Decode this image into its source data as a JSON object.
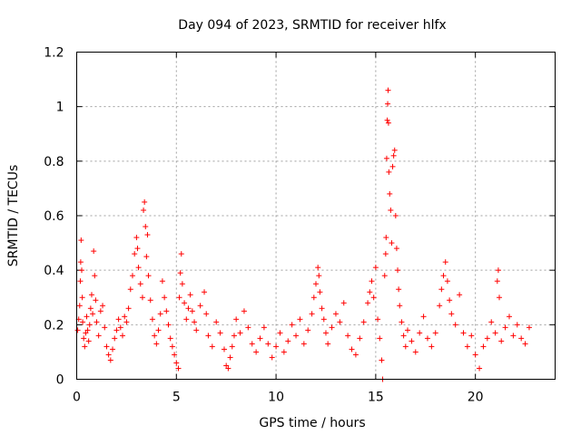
{
  "chart_data": {
    "type": "scatter",
    "title": "Day 094 of 2023, SRMTID for receiver hlfx",
    "xlabel": "GPS time / hours",
    "ylabel": "SRMTID / TECUs",
    "xlim": [
      0,
      24
    ],
    "ylim": [
      0,
      1.2
    ],
    "xticks": [
      0,
      5,
      10,
      15,
      20
    ],
    "yticks": [
      0,
      0.2,
      0.4,
      0.6,
      0.8,
      1,
      1.2
    ],
    "xtick_labels": [
      "0",
      "5",
      "10",
      "15",
      "20"
    ],
    "ytick_labels": [
      "0",
      "0.2",
      "0.4",
      "0.6",
      "0.8",
      "1",
      "1.2"
    ],
    "grid": true,
    "marker": "+",
    "color": "#ff0000",
    "series": [
      {
        "name": "SRMTID",
        "points": [
          [
            0.05,
            0.18
          ],
          [
            0.1,
            0.22
          ],
          [
            0.15,
            0.27
          ],
          [
            0.18,
            0.36
          ],
          [
            0.2,
            0.43
          ],
          [
            0.22,
            0.51
          ],
          [
            0.25,
            0.4
          ],
          [
            0.28,
            0.3
          ],
          [
            0.3,
            0.21
          ],
          [
            0.35,
            0.15
          ],
          [
            0.4,
            0.12
          ],
          [
            0.45,
            0.17
          ],
          [
            0.5,
            0.23
          ],
          [
            0.55,
            0.18
          ],
          [
            0.6,
            0.14
          ],
          [
            0.65,
            0.2
          ],
          [
            0.7,
            0.26
          ],
          [
            0.75,
            0.31
          ],
          [
            0.8,
            0.24
          ],
          [
            0.85,
            0.47
          ],
          [
            0.9,
            0.38
          ],
          [
            0.95,
            0.29
          ],
          [
            1.0,
            0.21
          ],
          [
            1.1,
            0.16
          ],
          [
            1.2,
            0.25
          ],
          [
            1.3,
            0.27
          ],
          [
            1.4,
            0.19
          ],
          [
            1.5,
            0.12
          ],
          [
            1.6,
            0.09
          ],
          [
            1.7,
            0.07
          ],
          [
            1.8,
            0.11
          ],
          [
            1.9,
            0.15
          ],
          [
            2.0,
            0.18
          ],
          [
            2.1,
            0.22
          ],
          [
            2.2,
            0.19
          ],
          [
            2.3,
            0.16
          ],
          [
            2.4,
            0.23
          ],
          [
            2.5,
            0.21
          ],
          [
            2.6,
            0.26
          ],
          [
            2.7,
            0.33
          ],
          [
            2.8,
            0.38
          ],
          [
            2.9,
            0.46
          ],
          [
            3.0,
            0.52
          ],
          [
            3.05,
            0.48
          ],
          [
            3.1,
            0.41
          ],
          [
            3.2,
            0.35
          ],
          [
            3.3,
            0.3
          ],
          [
            3.35,
            0.62
          ],
          [
            3.4,
            0.65
          ],
          [
            3.45,
            0.56
          ],
          [
            3.5,
            0.45
          ],
          [
            3.55,
            0.53
          ],
          [
            3.6,
            0.38
          ],
          [
            3.7,
            0.29
          ],
          [
            3.8,
            0.22
          ],
          [
            3.9,
            0.16
          ],
          [
            4.0,
            0.13
          ],
          [
            4.1,
            0.18
          ],
          [
            4.2,
            0.24
          ],
          [
            4.3,
            0.36
          ],
          [
            4.4,
            0.3
          ],
          [
            4.5,
            0.25
          ],
          [
            4.6,
            0.2
          ],
          [
            4.7,
            0.15
          ],
          [
            4.8,
            0.12
          ],
          [
            4.9,
            0.09
          ],
          [
            5.0,
            0.06
          ],
          [
            5.1,
            0.04
          ],
          [
            5.15,
            0.3
          ],
          [
            5.2,
            0.39
          ],
          [
            5.25,
            0.46
          ],
          [
            5.3,
            0.35
          ],
          [
            5.4,
            0.28
          ],
          [
            5.5,
            0.22
          ],
          [
            5.6,
            0.26
          ],
          [
            5.7,
            0.31
          ],
          [
            5.8,
            0.25
          ],
          [
            5.9,
            0.21
          ],
          [
            6.0,
            0.18
          ],
          [
            6.2,
            0.27
          ],
          [
            6.4,
            0.32
          ],
          [
            6.5,
            0.24
          ],
          [
            6.6,
            0.16
          ],
          [
            6.8,
            0.12
          ],
          [
            7.0,
            0.21
          ],
          [
            7.2,
            0.17
          ],
          [
            7.4,
            0.11
          ],
          [
            7.5,
            0.05
          ],
          [
            7.6,
            0.04
          ],
          [
            7.7,
            0.08
          ],
          [
            7.8,
            0.12
          ],
          [
            7.9,
            0.16
          ],
          [
            8.0,
            0.22
          ],
          [
            8.2,
            0.17
          ],
          [
            8.4,
            0.25
          ],
          [
            8.6,
            0.19
          ],
          [
            8.8,
            0.13
          ],
          [
            9.0,
            0.1
          ],
          [
            9.2,
            0.15
          ],
          [
            9.4,
            0.19
          ],
          [
            9.6,
            0.13
          ],
          [
            9.8,
            0.08
          ],
          [
            10.0,
            0.12
          ],
          [
            10.2,
            0.17
          ],
          [
            10.4,
            0.1
          ],
          [
            10.6,
            0.14
          ],
          [
            10.8,
            0.2
          ],
          [
            11.0,
            0.16
          ],
          [
            11.2,
            0.22
          ],
          [
            11.4,
            0.13
          ],
          [
            11.6,
            0.18
          ],
          [
            11.8,
            0.24
          ],
          [
            11.9,
            0.3
          ],
          [
            12.0,
            0.35
          ],
          [
            12.1,
            0.41
          ],
          [
            12.15,
            0.38
          ],
          [
            12.2,
            0.32
          ],
          [
            12.3,
            0.26
          ],
          [
            12.4,
            0.22
          ],
          [
            12.5,
            0.17
          ],
          [
            12.6,
            0.13
          ],
          [
            12.8,
            0.19
          ],
          [
            13.0,
            0.24
          ],
          [
            13.2,
            0.21
          ],
          [
            13.4,
            0.28
          ],
          [
            13.6,
            0.16
          ],
          [
            13.8,
            0.11
          ],
          [
            14.0,
            0.09
          ],
          [
            14.2,
            0.15
          ],
          [
            14.4,
            0.21
          ],
          [
            14.6,
            0.28
          ],
          [
            14.7,
            0.32
          ],
          [
            14.8,
            0.36
          ],
          [
            14.9,
            0.3
          ],
          [
            15.0,
            0.41
          ],
          [
            15.1,
            0.22
          ],
          [
            15.2,
            0.15
          ],
          [
            15.3,
            0.07
          ],
          [
            15.35,
            0.0
          ],
          [
            15.45,
            0.38
          ],
          [
            15.5,
            0.46
          ],
          [
            15.52,
            0.52
          ],
          [
            15.55,
            0.81
          ],
          [
            15.58,
            0.95
          ],
          [
            15.6,
            1.01
          ],
          [
            15.62,
            1.06
          ],
          [
            15.64,
            0.94
          ],
          [
            15.66,
            0.76
          ],
          [
            15.7,
            0.68
          ],
          [
            15.75,
            0.62
          ],
          [
            15.8,
            0.5
          ],
          [
            15.85,
            0.78
          ],
          [
            15.9,
            0.82
          ],
          [
            15.95,
            0.84
          ],
          [
            16.0,
            0.6
          ],
          [
            16.05,
            0.48
          ],
          [
            16.1,
            0.4
          ],
          [
            16.15,
            0.33
          ],
          [
            16.2,
            0.27
          ],
          [
            16.3,
            0.21
          ],
          [
            16.4,
            0.16
          ],
          [
            16.5,
            0.12
          ],
          [
            16.6,
            0.18
          ],
          [
            16.8,
            0.14
          ],
          [
            17.0,
            0.1
          ],
          [
            17.2,
            0.17
          ],
          [
            17.4,
            0.23
          ],
          [
            17.6,
            0.15
          ],
          [
            17.8,
            0.12
          ],
          [
            18.0,
            0.17
          ],
          [
            18.2,
            0.27
          ],
          [
            18.3,
            0.33
          ],
          [
            18.4,
            0.38
          ],
          [
            18.5,
            0.43
          ],
          [
            18.6,
            0.36
          ],
          [
            18.7,
            0.29
          ],
          [
            18.8,
            0.24
          ],
          [
            19.0,
            0.2
          ],
          [
            19.2,
            0.31
          ],
          [
            19.4,
            0.17
          ],
          [
            19.6,
            0.12
          ],
          [
            19.8,
            0.16
          ],
          [
            20.0,
            0.09
          ],
          [
            20.2,
            0.04
          ],
          [
            20.4,
            0.12
          ],
          [
            20.6,
            0.15
          ],
          [
            20.8,
            0.21
          ],
          [
            21.0,
            0.17
          ],
          [
            21.1,
            0.36
          ],
          [
            21.15,
            0.4
          ],
          [
            21.2,
            0.3
          ],
          [
            21.3,
            0.14
          ],
          [
            21.5,
            0.19
          ],
          [
            21.7,
            0.23
          ],
          [
            21.9,
            0.16
          ],
          [
            22.1,
            0.2
          ],
          [
            22.3,
            0.15
          ],
          [
            22.5,
            0.13
          ],
          [
            22.7,
            0.19
          ]
        ]
      }
    ]
  }
}
